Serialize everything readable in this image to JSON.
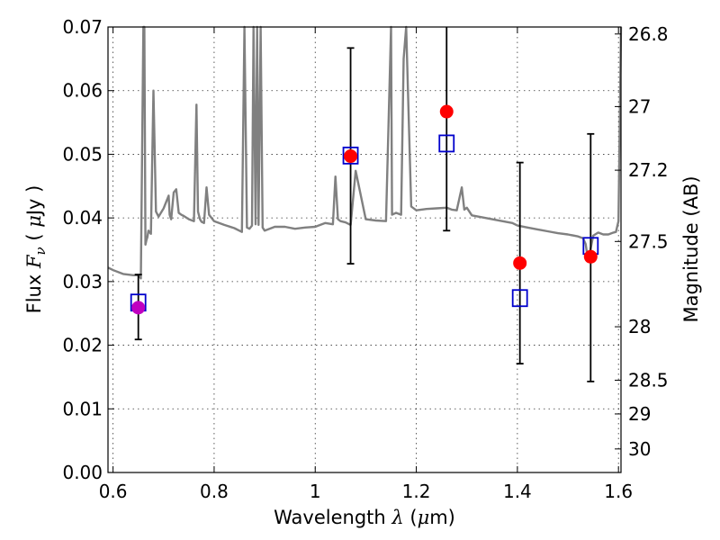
{
  "chart_data": {
    "type": "scatter",
    "xlabel": "Wavelength  λ (μm)",
    "ylabel": "Flux  F_ν  ( μJy )",
    "ylabel_parts": {
      "prefix": "Flux  ",
      "F": "F",
      "nu": "ν",
      "middle": "  ( ",
      "mu": "μ",
      "suffix": "Jy )"
    },
    "xlabel_parts": {
      "prefix": "Wavelength  ",
      "lambda": "λ",
      "middle": " (",
      "mu": "μ",
      "suffix": "m)"
    },
    "right_ylabel": "Magnitude (AB)",
    "xlim": [
      0.59,
      1.605
    ],
    "ylim": [
      0.0,
      0.07
    ],
    "grid": true,
    "x_ticks": [
      {
        "value": 0.6,
        "label": "0.6"
      },
      {
        "value": 0.8,
        "label": "0.8"
      },
      {
        "value": 1.0,
        "label": "1"
      },
      {
        "value": 1.2,
        "label": "1.2"
      },
      {
        "value": 1.4,
        "label": "1.4"
      },
      {
        "value": 1.6,
        "label": "1.6"
      }
    ],
    "y_ticks": [
      {
        "value": 0.0,
        "label": "0.00"
      },
      {
        "value": 0.01,
        "label": "0.01"
      },
      {
        "value": 0.02,
        "label": "0.02"
      },
      {
        "value": 0.03,
        "label": "0.03"
      },
      {
        "value": 0.04,
        "label": "0.04"
      },
      {
        "value": 0.05,
        "label": "0.05"
      },
      {
        "value": 0.06,
        "label": "0.06"
      },
      {
        "value": 0.07,
        "label": "0.07"
      }
    ],
    "right_ticks": [
      {
        "flux": 0.0689,
        "label": "26.8"
      },
      {
        "flux": 0.0575,
        "label": "27"
      },
      {
        "flux": 0.0475,
        "label": "27.2"
      },
      {
        "flux": 0.0363,
        "label": "27.5"
      },
      {
        "flux": 0.0229,
        "label": "28"
      },
      {
        "flux": 0.0145,
        "label": "28.5"
      },
      {
        "flux": 0.0092,
        "label": "29"
      },
      {
        "flux": 0.0037,
        "label": "30"
      }
    ],
    "series": [
      {
        "kind": "measured",
        "color": "#ff0000",
        "points": [
          {
            "x": 0.65,
            "y": 0.0259,
            "err_low": 0.0209,
            "err_high": 0.0311,
            "color": "#c000c0"
          },
          {
            "x": 1.07,
            "y": 0.0497,
            "err_low": 0.0328,
            "err_high": 0.0667
          },
          {
            "x": 1.26,
            "y": 0.0567,
            "err_low": 0.038,
            "err_high": 0.075
          },
          {
            "x": 1.405,
            "y": 0.0329,
            "err_low": 0.0171,
            "err_high": 0.0487
          },
          {
            "x": 1.545,
            "y": 0.0339,
            "err_low": 0.0143,
            "err_high": 0.0532
          }
        ]
      },
      {
        "kind": "model",
        "color": "#0000cc",
        "points": [
          {
            "x": 0.65,
            "y": 0.0267
          },
          {
            "x": 1.07,
            "y": 0.0498
          },
          {
            "x": 1.26,
            "y": 0.0517
          },
          {
            "x": 1.405,
            "y": 0.0274
          },
          {
            "x": 1.545,
            "y": 0.0356
          }
        ]
      },
      {
        "kind": "spectrum",
        "color": "#808080",
        "x": [
          0.59,
          0.6,
          0.62,
          0.64,
          0.65,
          0.655,
          0.66,
          0.662,
          0.664,
          0.666,
          0.668,
          0.67,
          0.675,
          0.68,
          0.685,
          0.69,
          0.7,
          0.71,
          0.712,
          0.715,
          0.72,
          0.725,
          0.73,
          0.735,
          0.74,
          0.75,
          0.76,
          0.765,
          0.768,
          0.772,
          0.775,
          0.78,
          0.785,
          0.79,
          0.8,
          0.82,
          0.84,
          0.855,
          0.86,
          0.865,
          0.87,
          0.875,
          0.878,
          0.882,
          0.885,
          0.888,
          0.892,
          0.896,
          0.9,
          0.92,
          0.94,
          0.96,
          0.98,
          1.0,
          1.02,
          1.035,
          1.04,
          1.045,
          1.05,
          1.06,
          1.07,
          1.08,
          1.1,
          1.12,
          1.14,
          1.15,
          1.152,
          1.16,
          1.17,
          1.175,
          1.18,
          1.19,
          1.2,
          1.22,
          1.24,
          1.26,
          1.27,
          1.28,
          1.29,
          1.295,
          1.3,
          1.31,
          1.33,
          1.35,
          1.37,
          1.39,
          1.4,
          1.42,
          1.44,
          1.46,
          1.48,
          1.5,
          1.52,
          1.53,
          1.535,
          1.54,
          1.55,
          1.56,
          1.57,
          1.58,
          1.59,
          1.595,
          1.6,
          1.605
        ],
        "y": [
          0.0322,
          0.0318,
          0.0312,
          0.031,
          0.031,
          0.0305,
          0.07,
          0.07,
          0.0358,
          0.0365,
          0.037,
          0.038,
          0.0375,
          0.06,
          0.041,
          0.0402,
          0.0415,
          0.0435,
          0.0405,
          0.0398,
          0.044,
          0.0445,
          0.0408,
          0.0405,
          0.0403,
          0.0398,
          0.0395,
          0.0578,
          0.041,
          0.0398,
          0.0394,
          0.0392,
          0.0448,
          0.0405,
          0.0395,
          0.0389,
          0.0384,
          0.0378,
          0.07,
          0.0385,
          0.0383,
          0.0388,
          0.07,
          0.039,
          0.07,
          0.0389,
          0.07,
          0.0385,
          0.038,
          0.0386,
          0.0386,
          0.0383,
          0.0385,
          0.0386,
          0.0392,
          0.039,
          0.0465,
          0.0398,
          0.0395,
          0.0393,
          0.0389,
          0.0474,
          0.0398,
          0.0396,
          0.0395,
          0.07,
          0.0405,
          0.0408,
          0.0405,
          0.065,
          0.07,
          0.0418,
          0.0412,
          0.0414,
          0.0415,
          0.0416,
          0.0413,
          0.0412,
          0.0448,
          0.0413,
          0.0416,
          0.0404,
          0.0401,
          0.0398,
          0.0395,
          0.0392,
          0.0388,
          0.0385,
          0.0382,
          0.0379,
          0.0376,
          0.0374,
          0.0371,
          0.0368,
          0.0359,
          0.0332,
          0.0372,
          0.0377,
          0.0374,
          0.0374,
          0.0377,
          0.0378,
          0.0395,
          0.07
        ]
      }
    ]
  }
}
